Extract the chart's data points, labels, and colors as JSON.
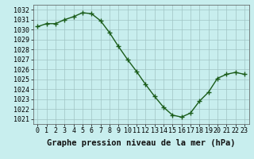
{
  "hours": [
    0,
    1,
    2,
    3,
    4,
    5,
    6,
    7,
    8,
    9,
    10,
    11,
    12,
    13,
    14,
    15,
    16,
    17,
    18,
    19,
    20,
    21,
    22,
    23
  ],
  "pressure": [
    1030.3,
    1030.6,
    1030.6,
    1031.0,
    1031.3,
    1031.7,
    1031.6,
    1030.9,
    1029.7,
    1028.3,
    1027.0,
    1025.8,
    1024.5,
    1023.3,
    1022.2,
    1021.4,
    1021.2,
    1021.6,
    1022.8,
    1023.7,
    1025.1,
    1025.5,
    1025.7,
    1025.5
  ],
  "line_color": "#1a5c1a",
  "marker": "+",
  "marker_size": 4,
  "marker_color": "#1a5c1a",
  "bg_color": "#c8eeee",
  "grid_color": "#a0c4c4",
  "ylabel_ticks": [
    1021,
    1022,
    1023,
    1024,
    1025,
    1026,
    1027,
    1028,
    1029,
    1030,
    1031,
    1032
  ],
  "ylim": [
    1020.5,
    1032.5
  ],
  "xlim": [
    -0.5,
    23.5
  ],
  "xlabel": "Graphe pression niveau de la mer (hPa)",
  "xlabel_fontsize": 7.5,
  "tick_fontsize": 6,
  "line_width": 1.0
}
